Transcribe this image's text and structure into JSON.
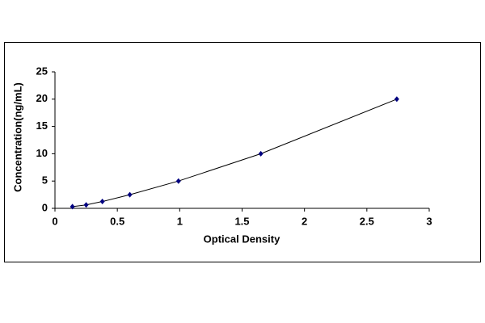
{
  "chart_data": {
    "type": "scatter",
    "x_label": "Optical Density",
    "y_label": "Concentration(ng/mL)",
    "x": [
      0.14,
      0.25,
      0.38,
      0.6,
      0.99,
      1.65,
      2.74
    ],
    "series": [
      {
        "color": "#000080",
        "values": [
          0.31,
          0.63,
          1.25,
          2.5,
          5,
          10,
          20
        ]
      }
    ],
    "connect": true,
    "xlim": [
      0,
      3
    ],
    "xticks": [
      0,
      0.5,
      1,
      1.5,
      2,
      2.5,
      3
    ],
    "ylim": [
      0,
      25
    ],
    "yticks": [
      0,
      5,
      10,
      15,
      20,
      25
    ],
    "grid": false
  }
}
